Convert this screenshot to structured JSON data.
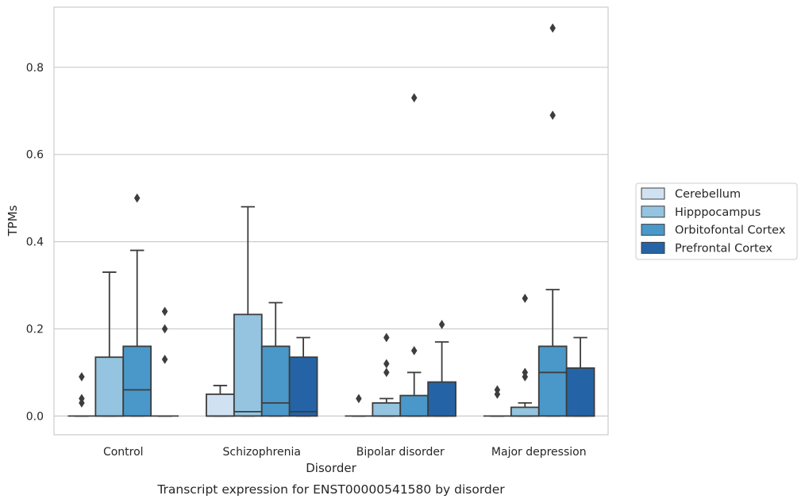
{
  "chart_data": {
    "type": "box",
    "caption": "Transcript expression for ENST00000541580 by disorder",
    "xlabel": "Disorder",
    "ylabel": "TPMs",
    "ylim": [
      -0.043,
      0.938
    ],
    "yticks": [
      0.0,
      0.2,
      0.4,
      0.6,
      0.8
    ],
    "ytick_labels": [
      "0.0",
      "0.2",
      "0.4",
      "0.6",
      "0.8"
    ],
    "grid": true,
    "legend_position": "right",
    "categories": [
      "Control",
      "Schizophrenia",
      "Bipolar disorder",
      "Major depression"
    ],
    "series": [
      {
        "name": "Cerebellum",
        "color": "#d0e1f2",
        "boxes": [
          {
            "q1": 0.0,
            "median": 0.0,
            "q3": 0.0,
            "whislo": 0.0,
            "whishi": 0.0,
            "fliers": [
              0.09,
              0.04,
              0.03
            ]
          },
          {
            "q1": 0.0,
            "median": 0.0,
            "q3": 0.05,
            "whislo": 0.0,
            "whishi": 0.07,
            "fliers": []
          },
          {
            "q1": 0.0,
            "median": 0.0,
            "q3": 0.0,
            "whislo": 0.0,
            "whishi": 0.0,
            "fliers": [
              0.04
            ]
          },
          {
            "q1": 0.0,
            "median": 0.0,
            "q3": 0.0,
            "whislo": 0.0,
            "whishi": 0.0,
            "fliers": [
              0.06,
              0.05
            ]
          }
        ]
      },
      {
        "name": "Hipppocampus",
        "color": "#94c4df",
        "boxes": [
          {
            "q1": 0.0,
            "median": 0.0,
            "q3": 0.135,
            "whislo": 0.0,
            "whishi": 0.33,
            "fliers": []
          },
          {
            "q1": 0.0,
            "median": 0.01,
            "q3": 0.233,
            "whislo": 0.0,
            "whishi": 0.48,
            "fliers": []
          },
          {
            "q1": 0.0,
            "median": 0.0,
            "q3": 0.03,
            "whislo": 0.0,
            "whishi": 0.04,
            "fliers": [
              0.18,
              0.12,
              0.1
            ]
          },
          {
            "q1": 0.0,
            "median": 0.0,
            "q3": 0.02,
            "whislo": 0.0,
            "whishi": 0.03,
            "fliers": [
              0.27,
              0.1,
              0.09
            ]
          }
        ]
      },
      {
        "name": "Orbitofontal Cortex",
        "color": "#4a98c9",
        "boxes": [
          {
            "q1": 0.0,
            "median": 0.06,
            "q3": 0.16,
            "whislo": 0.0,
            "whishi": 0.38,
            "fliers": [
              0.5
            ]
          },
          {
            "q1": 0.0,
            "median": 0.03,
            "q3": 0.16,
            "whislo": 0.0,
            "whishi": 0.26,
            "fliers": []
          },
          {
            "q1": 0.0,
            "median": 0.0,
            "q3": 0.047,
            "whislo": 0.0,
            "whishi": 0.1,
            "fliers": [
              0.73,
              0.15
            ]
          },
          {
            "q1": 0.0,
            "median": 0.1,
            "q3": 0.16,
            "whislo": 0.0,
            "whishi": 0.29,
            "fliers": [
              0.89,
              0.69
            ]
          }
        ]
      },
      {
        "name": "Prefrontal Cortex",
        "color": "#2464a6",
        "boxes": [
          {
            "q1": 0.0,
            "median": 0.0,
            "q3": 0.0,
            "whislo": 0.0,
            "whishi": 0.0,
            "fliers": [
              0.24,
              0.2,
              0.13
            ]
          },
          {
            "q1": 0.0,
            "median": 0.01,
            "q3": 0.135,
            "whislo": 0.0,
            "whishi": 0.18,
            "fliers": []
          },
          {
            "q1": 0.0,
            "median": 0.0,
            "q3": 0.078,
            "whislo": 0.0,
            "whishi": 0.17,
            "fliers": [
              0.21
            ]
          },
          {
            "q1": 0.0,
            "median": 0.0,
            "q3": 0.11,
            "whislo": 0.0,
            "whishi": 0.18,
            "fliers": []
          }
        ]
      }
    ]
  }
}
